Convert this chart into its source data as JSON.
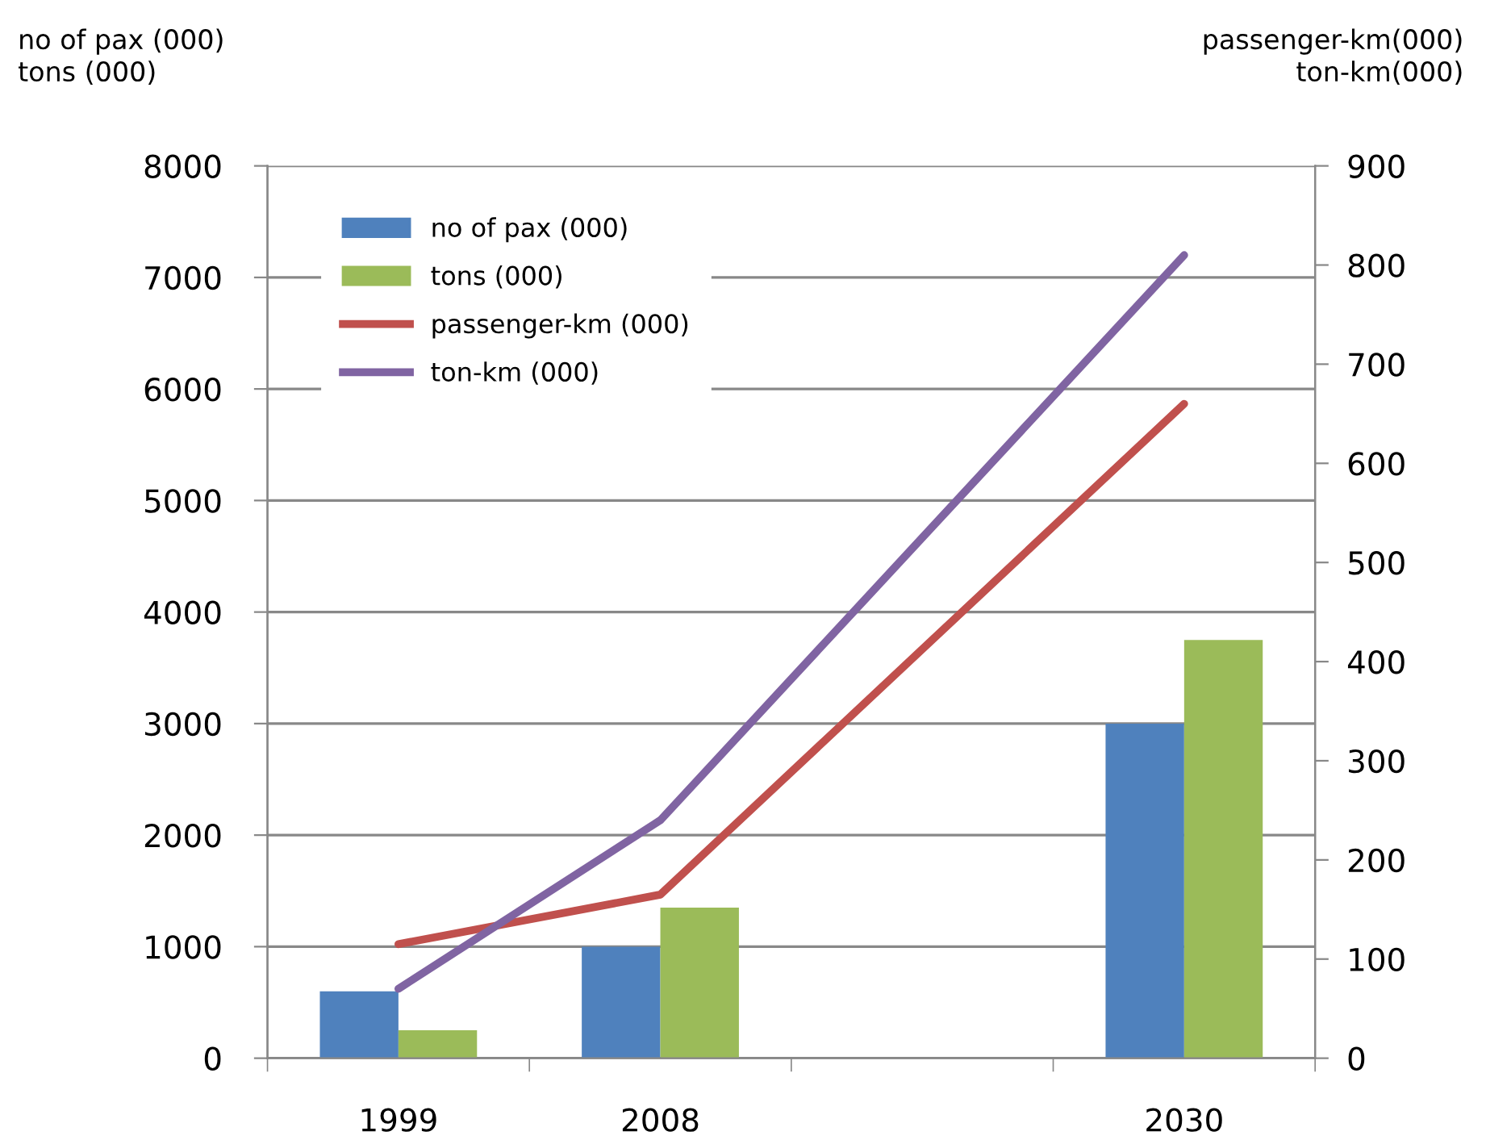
{
  "chart_data": {
    "type": "bar",
    "ylabel": "no of pax (000)\ntons (000)",
    "y2label": "passenger-km(000)\nton-km(000)",
    "categories": [
      "1999",
      "2008",
      null,
      "2030"
    ],
    "series": [
      {
        "name": "no of pax (000)",
        "color": "#4f81bd",
        "values": [
          600,
          1000,
          null,
          3000
        ]
      },
      {
        "name": "tons (000)",
        "color": "#9bbb59",
        "values": [
          250,
          1350,
          null,
          3750
        ]
      },
      {
        "name": "passenger-km (000)",
        "type": "line",
        "axis": "y2",
        "color": "#c0504d",
        "values": [
          115,
          165,
          null,
          660
        ]
      },
      {
        "name": "ton-km (000)",
        "type": "line",
        "axis": "y2",
        "color": "#8064a2",
        "values": [
          70,
          240,
          null,
          810
        ]
      }
    ],
    "ylim": [
      0,
      8000
    ],
    "yticks": [
      0,
      1000,
      2000,
      3000,
      4000,
      5000,
      6000,
      7000,
      8000
    ],
    "y2lim": [
      0,
      900
    ],
    "y2ticks": [
      0,
      100,
      200,
      300,
      400,
      500,
      600,
      700,
      800,
      900
    ],
    "grid": "y",
    "legend": "top left",
    "marker": "none",
    "line_style": "solid"
  }
}
